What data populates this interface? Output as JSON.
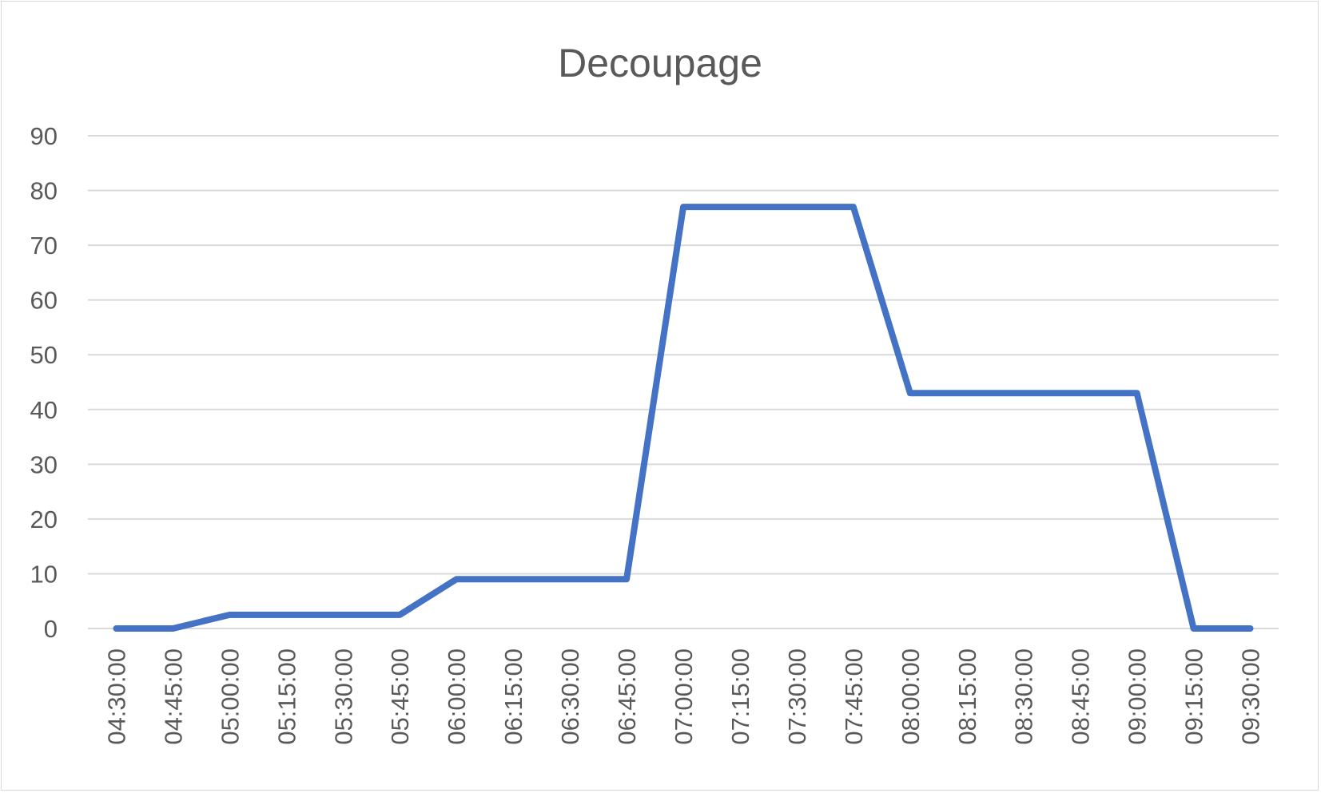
{
  "chart_data": {
    "type": "line",
    "title": "Decoupage",
    "xlabel": "",
    "ylabel": "",
    "ylim": [
      0,
      90
    ],
    "yticks": [
      "0",
      "10",
      "20",
      "30",
      "40",
      "50",
      "60",
      "70",
      "80",
      "90"
    ],
    "categories": [
      "04:30:00",
      "04:45:00",
      "05:00:00",
      "05:15:00",
      "05:30:00",
      "05:45:00",
      "06:00:00",
      "06:15:00",
      "06:30:00",
      "06:45:00",
      "07:00:00",
      "07:15:00",
      "07:30:00",
      "07:45:00",
      "08:00:00",
      "08:15:00",
      "08:30:00",
      "08:45:00",
      "09:00:00",
      "09:15:00",
      "09:30:00"
    ],
    "series": [
      {
        "values": [
          0,
          0,
          2.5,
          2.5,
          2.5,
          2.5,
          9,
          9,
          9,
          9,
          77,
          77,
          77,
          77,
          43,
          43,
          43,
          43,
          43,
          0,
          0
        ],
        "color": "#4472c4"
      }
    ],
    "grid": true,
    "legend": "none"
  }
}
